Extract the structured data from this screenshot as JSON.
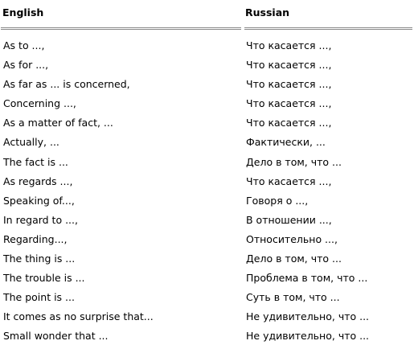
{
  "header": {
    "english": "English",
    "russian": "Russian"
  },
  "rows": [
    {
      "en": "As to ...,",
      "ru": "Что касается ...,"
    },
    {
      "en": "As for ...,",
      "ru": "Что касается ...,"
    },
    {
      "en": "As far as ... is concerned,",
      "ru": "Что касается ...,"
    },
    {
      "en": "Concerning ...,",
      "ru": "Что касается ...,"
    },
    {
      "en": "As a matter of fact, ...",
      "ru": "Что касается ...,"
    },
    {
      "en": "Actually, ...",
      "ru": "Фактически, ..."
    },
    {
      "en": "The fact is ...",
      "ru": "Дело в том, что ..."
    },
    {
      "en": "As regards ...,",
      "ru": "Что касается ...,"
    },
    {
      "en": "Speaking of...,",
      "ru": "Говоря о ...,"
    },
    {
      "en": "In regard to ...,",
      "ru": "В отношении ...,"
    },
    {
      "en": "Regarding...,",
      "ru": "Относительно ...,"
    },
    {
      "en": "The thing is ...",
      "ru": "Дело в том, что ..."
    },
    {
      "en": "The trouble is ...",
      "ru": "Проблема в том, что ..."
    },
    {
      "en": "The point is ...",
      "ru": "Суть в том, что ..."
    },
    {
      "en": "It comes as no surprise that...",
      "ru": "Не удивительно, что ..."
    },
    {
      "en": "Small wonder that ...",
      "ru": "Не удивительно, что ..."
    }
  ]
}
